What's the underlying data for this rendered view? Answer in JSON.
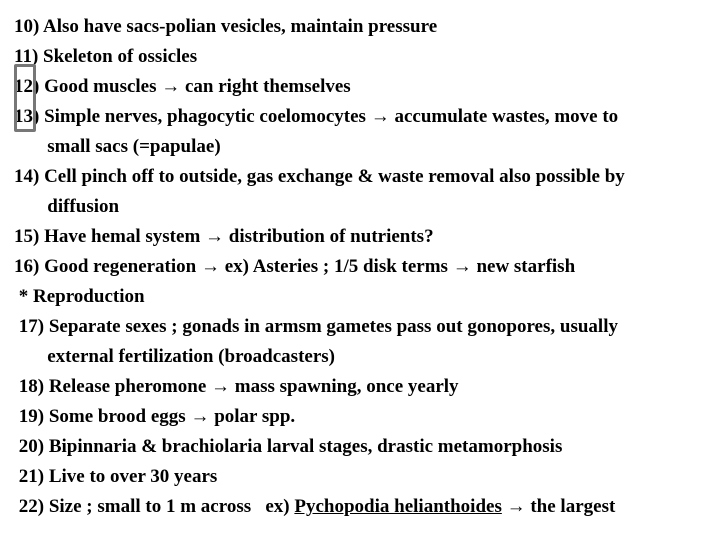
{
  "lines": {
    "l0": "10) Also have sacs-polian vesicles, maintain pressure",
    "l1": "11) Skeleton of ossicles",
    "l2": "12) Good muscles → can right themselves",
    "l3": "13) Simple nerves, phagocytic coelomocytes → accumulate wastes, move to",
    "l4": "       small sacs (=papulae)",
    "l5": "14) Cell pinch off to outside, gas exchange & waste removal also possible by",
    "l6": "       diffusion",
    "l7": "15) Have hemal system → distribution of nutrients?",
    "l8": "16) Good regeneration → ex) Asteries ; 1/5 disk terms → new starfish",
    "l9": " * Reproduction",
    "l10": " 17) Separate sexes ; gonads in armsm gametes pass out gonopores, usually",
    "l11": "       external fertilization (broadcasters)",
    "l12": " 18) Release pheromone → mass spawning, once yearly",
    "l13": " 19) Some brood eggs → polar spp.",
    "l14": " 20) Bipinnaria & brachiolaria larval stages, drastic metamorphosis",
    "l15": " 21) Live to over 30 years",
    "l16a": " 22) Size ; small to 1 m across   ex) ",
    "l16b": "Pychopodia helianthoides",
    "l16c": " → the largest"
  }
}
